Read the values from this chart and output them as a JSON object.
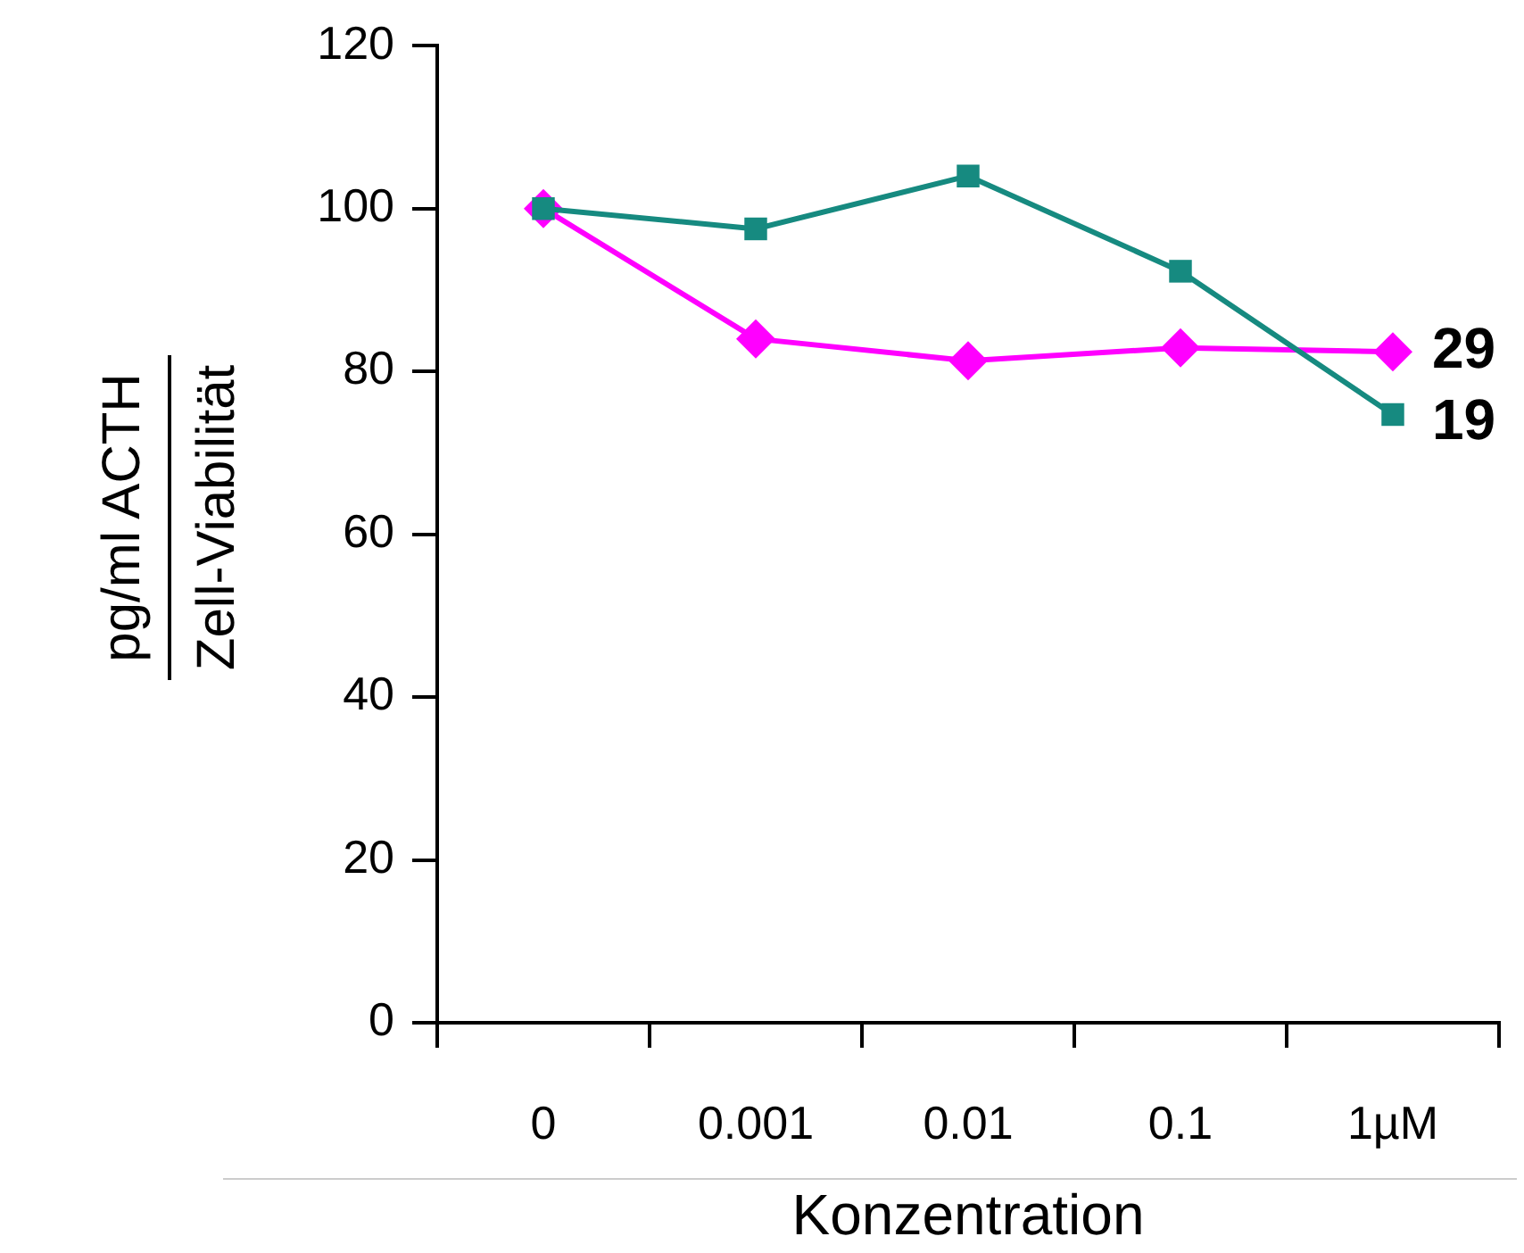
{
  "chart_data": {
    "type": "line",
    "xlabel": "Konzentration",
    "ylabel": "pg/ml ACTH\nZell-Viabilität",
    "categories": [
      "0",
      "0.001",
      "0.01",
      "0.1",
      "1µM"
    ],
    "series": [
      {
        "name": "19",
        "color": "#168a80",
        "marker": "square",
        "values": [
          100,
          97.5,
          104,
          92.3,
          74.7
        ]
      },
      {
        "name": "29",
        "color": "#ff00ff",
        "marker": "diamond",
        "values": [
          100,
          84,
          81.3,
          82.9,
          82.4
        ]
      }
    ],
    "ylim": [
      0,
      120
    ],
    "yticks": [
      0,
      20,
      40,
      60,
      80,
      100,
      120
    ],
    "grid": false,
    "legend": false
  }
}
